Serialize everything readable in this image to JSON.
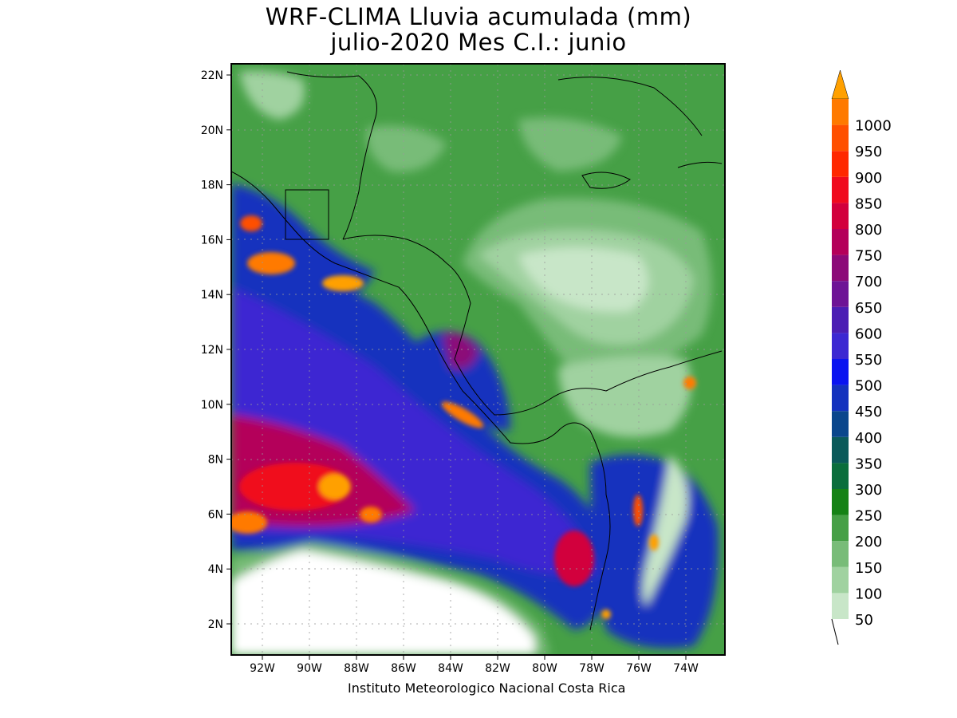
{
  "title_line1": "WRF-CLIMA Lluvia acumulada (mm)",
  "title_line2": "julio-2020 Mes C.I.: junio",
  "credit": "Instituto Meteorologico Nacional Costa Rica",
  "map": {
    "lon_range": [
      -93.3,
      -72.3
    ],
    "lat_range": [
      0.9,
      22.4
    ],
    "lon_ticks": [
      "92W",
      "90W",
      "88W",
      "86W",
      "84W",
      "82W",
      "80W",
      "78W",
      "76W",
      "74W"
    ],
    "lat_ticks": [
      "22N",
      "20N",
      "18N",
      "16N",
      "14N",
      "12N",
      "10N",
      "8N",
      "6N",
      "4N",
      "2N"
    ],
    "grid": "dotted"
  },
  "colorbar": {
    "levels": [
      "50",
      "100",
      "150",
      "200",
      "250",
      "300",
      "350",
      "400",
      "450",
      "500",
      "550",
      "600",
      "650",
      "700",
      "750",
      "800",
      "850",
      "900",
      "950",
      "1000"
    ],
    "colors": [
      "#c8e6c8",
      "#a0d2a0",
      "#78bc78",
      "#46a046",
      "#158215",
      "#0a6e3c",
      "#0a5a5a",
      "#0a468c",
      "#1432be",
      "#0a14f0",
      "#3c28d2",
      "#4b1eb4",
      "#6e1496",
      "#8c0a78",
      "#b4005a",
      "#d2003c",
      "#f00a1e",
      "#ff2800",
      "#ff5000",
      "#ff7a00"
    ],
    "over_color": "#ffa000"
  }
}
